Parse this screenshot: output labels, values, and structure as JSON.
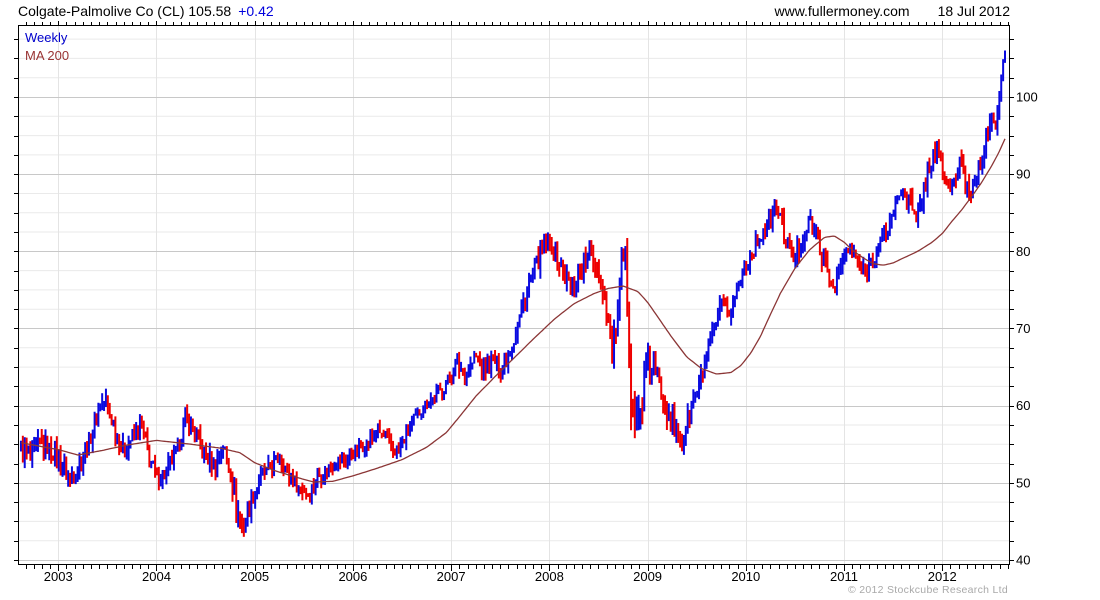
{
  "header": {
    "title": "Colgate-Palmolive Co (CL) 105.58",
    "change": "+0.42",
    "site": "www.fullermoney.com",
    "date": "18 Jul 2012"
  },
  "legend": {
    "weekly": "Weekly",
    "ma": "MA 200"
  },
  "footer": {
    "copyright": "© 2012 Stockcube Research Ltd"
  },
  "colors": {
    "up": "#0a0ae0",
    "down": "#ee0000",
    "ma_line": "#8b3636",
    "grid_major": "#c8c8c8",
    "grid_minor": "#eaeaea",
    "grid_year": "#e4e4e4",
    "axis": "#000000",
    "muted": "#a9a9a9",
    "change_text": "#0000dd"
  },
  "chart_data": {
    "type": "bar",
    "subtype": "weekly-price-range-bars",
    "title": "Colgate-Palmolive Co (CL)",
    "last_price": 105.58,
    "change": 0.42,
    "legend": [
      "Weekly",
      "MA 200"
    ],
    "grid": true,
    "y_axis_side": "right",
    "ylabel": "",
    "xlabel": "",
    "x_domain": [
      2002.59,
      2012.69
    ],
    "y_domain_price_at_bottom_top": [
      39.35,
      109.33
    ],
    "y_tick_labels": [
      40,
      50,
      60,
      70,
      80,
      90,
      100
    ],
    "y_minor_step": 2.5,
    "x_tick_years": [
      2003,
      2004,
      2005,
      2006,
      2007,
      2008,
      2009,
      2010,
      2011,
      2012
    ],
    "bars_per_year": 52,
    "t_start": 2002.62,
    "t_end": 2012.64,
    "price_anchors": [
      [
        2002.62,
        54.5,
        3.2
      ],
      [
        2002.72,
        52.8,
        3.4
      ],
      [
        2002.82,
        55.3,
        3.0
      ],
      [
        2002.92,
        54.3,
        2.8
      ],
      [
        2003.02,
        53.0,
        2.8
      ],
      [
        2003.12,
        50.6,
        3.0
      ],
      [
        2003.22,
        52.5,
        2.6
      ],
      [
        2003.32,
        55.5,
        2.6
      ],
      [
        2003.42,
        60.0,
        2.6
      ],
      [
        2003.48,
        60.8,
        2.4
      ],
      [
        2003.56,
        57.5,
        2.6
      ],
      [
        2003.66,
        54.2,
        2.6
      ],
      [
        2003.76,
        56.0,
        2.4
      ],
      [
        2003.84,
        57.8,
        2.4
      ],
      [
        2003.92,
        53.5,
        3.0
      ],
      [
        2004.0,
        50.5,
        2.8
      ],
      [
        2004.1,
        51.5,
        2.6
      ],
      [
        2004.2,
        53.8,
        2.4
      ],
      [
        2004.3,
        58.3,
        2.6
      ],
      [
        2004.4,
        56.5,
        2.6
      ],
      [
        2004.5,
        53.5,
        2.8
      ],
      [
        2004.6,
        52.3,
        2.6
      ],
      [
        2004.68,
        54.8,
        2.2
      ],
      [
        2004.76,
        51.0,
        3.0
      ],
      [
        2004.82,
        46.5,
        4.0
      ],
      [
        2004.88,
        44.0,
        3.0
      ],
      [
        2004.96,
        47.5,
        2.6
      ],
      [
        2005.05,
        50.5,
        2.4
      ],
      [
        2005.15,
        51.8,
        2.2
      ],
      [
        2005.25,
        53.3,
        2.2
      ],
      [
        2005.35,
        51.0,
        2.4
      ],
      [
        2005.45,
        49.3,
        2.2
      ],
      [
        2005.55,
        48.8,
        2.2
      ],
      [
        2005.65,
        50.8,
        2.2
      ],
      [
        2005.75,
        51.8,
        2.0
      ],
      [
        2005.85,
        52.8,
        2.0
      ],
      [
        2005.95,
        53.2,
        2.0
      ],
      [
        2006.05,
        54.2,
        2.0
      ],
      [
        2006.15,
        55.2,
        2.0
      ],
      [
        2006.25,
        56.8,
        2.0
      ],
      [
        2006.35,
        55.3,
        2.2
      ],
      [
        2006.45,
        53.9,
        2.2
      ],
      [
        2006.55,
        56.2,
        2.0
      ],
      [
        2006.65,
        58.8,
        2.0
      ],
      [
        2006.75,
        60.3,
        2.0
      ],
      [
        2006.85,
        61.4,
        2.0
      ],
      [
        2006.95,
        62.8,
        2.0
      ],
      [
        2007.05,
        65.3,
        2.4
      ],
      [
        2007.15,
        64.2,
        2.4
      ],
      [
        2007.25,
        66.3,
        2.4
      ],
      [
        2007.33,
        64.3,
        2.4
      ],
      [
        2007.42,
        66.0,
        2.4
      ],
      [
        2007.5,
        64.8,
        2.4
      ],
      [
        2007.58,
        66.5,
        2.4
      ],
      [
        2007.66,
        69.5,
        2.6
      ],
      [
        2007.76,
        74.5,
        2.8
      ],
      [
        2007.86,
        78.0,
        2.8
      ],
      [
        2007.94,
        80.3,
        2.8
      ],
      [
        2008.03,
        80.8,
        3.0
      ],
      [
        2008.12,
        77.8,
        3.0
      ],
      [
        2008.22,
        75.3,
        3.2
      ],
      [
        2008.32,
        77.8,
        2.8
      ],
      [
        2008.42,
        79.8,
        2.8
      ],
      [
        2008.5,
        77.5,
        3.0
      ],
      [
        2008.58,
        73.0,
        3.4
      ],
      [
        2008.64,
        67.0,
        3.6
      ],
      [
        2008.7,
        72.0,
        3.6
      ],
      [
        2008.74,
        79.5,
        3.8
      ],
      [
        2008.78,
        77.0,
        4.5
      ],
      [
        2008.83,
        64.0,
        9.0
      ],
      [
        2008.88,
        57.5,
        6.0
      ],
      [
        2008.93,
        59.5,
        5.0
      ],
      [
        2008.99,
        64.5,
        4.5
      ],
      [
        2009.06,
        65.3,
        4.0
      ],
      [
        2009.14,
        62.0,
        4.0
      ],
      [
        2009.22,
        59.0,
        4.0
      ],
      [
        2009.3,
        56.0,
        3.6
      ],
      [
        2009.36,
        55.2,
        3.2
      ],
      [
        2009.44,
        59.5,
        3.0
      ],
      [
        2009.52,
        62.5,
        2.8
      ],
      [
        2009.6,
        66.2,
        2.6
      ],
      [
        2009.68,
        69.8,
        2.5
      ],
      [
        2009.75,
        73.2,
        2.5
      ],
      [
        2009.82,
        71.8,
        2.6
      ],
      [
        2009.9,
        74.5,
        2.4
      ],
      [
        2009.97,
        77.0,
        2.4
      ],
      [
        2010.05,
        79.8,
        2.4
      ],
      [
        2010.14,
        81.8,
        2.5
      ],
      [
        2010.24,
        83.8,
        2.5
      ],
      [
        2010.32,
        85.8,
        2.4
      ],
      [
        2010.4,
        82.0,
        3.2
      ],
      [
        2010.48,
        78.8,
        2.8
      ],
      [
        2010.56,
        80.8,
        2.6
      ],
      [
        2010.64,
        84.2,
        2.4
      ],
      [
        2010.72,
        81.8,
        2.8
      ],
      [
        2010.8,
        78.5,
        2.8
      ],
      [
        2010.88,
        75.3,
        2.8
      ],
      [
        2010.96,
        77.8,
        2.6
      ],
      [
        2011.04,
        80.5,
        2.4
      ],
      [
        2011.12,
        79.0,
        2.4
      ],
      [
        2011.2,
        77.2,
        2.6
      ],
      [
        2011.28,
        78.8,
        2.4
      ],
      [
        2011.36,
        80.8,
        2.4
      ],
      [
        2011.44,
        82.8,
        2.4
      ],
      [
        2011.52,
        85.8,
        2.4
      ],
      [
        2011.6,
        88.3,
        2.6
      ],
      [
        2011.68,
        86.0,
        3.0
      ],
      [
        2011.74,
        83.5,
        4.5
      ],
      [
        2011.8,
        87.5,
        3.0
      ],
      [
        2011.87,
        91.0,
        3.0
      ],
      [
        2011.93,
        93.5,
        2.8
      ],
      [
        2012.0,
        91.0,
        3.0
      ],
      [
        2012.06,
        87.8,
        3.0
      ],
      [
        2012.12,
        89.0,
        2.8
      ],
      [
        2012.18,
        91.5,
        2.8
      ],
      [
        2012.24,
        88.5,
        2.8
      ],
      [
        2012.3,
        87.8,
        2.6
      ],
      [
        2012.36,
        90.5,
        2.6
      ],
      [
        2012.42,
        93.3,
        2.6
      ],
      [
        2012.48,
        95.8,
        2.6
      ],
      [
        2012.52,
        97.5,
        2.6
      ],
      [
        2012.55,
        96.5,
        2.6
      ],
      [
        2012.58,
        100.5,
        2.8
      ],
      [
        2012.61,
        103.0,
        2.6
      ],
      [
        2012.64,
        105.58,
        2.4
      ]
    ],
    "ma200_anchors": [
      [
        2002.62,
        55.2
      ],
      [
        2003.0,
        54.3
      ],
      [
        2003.2,
        53.6
      ],
      [
        2003.45,
        54.2
      ],
      [
        2003.7,
        54.9
      ],
      [
        2004.0,
        55.5
      ],
      [
        2004.35,
        55.0
      ],
      [
        2004.65,
        54.5
      ],
      [
        2004.85,
        53.9
      ],
      [
        2005.0,
        52.6
      ],
      [
        2005.2,
        51.6
      ],
      [
        2005.4,
        50.8
      ],
      [
        2005.6,
        50.1
      ],
      [
        2005.8,
        50.2
      ],
      [
        2006.0,
        50.9
      ],
      [
        2006.25,
        51.9
      ],
      [
        2006.5,
        53.0
      ],
      [
        2006.75,
        54.6
      ],
      [
        2006.95,
        56.5
      ],
      [
        2007.1,
        58.8
      ],
      [
        2007.25,
        61.2
      ],
      [
        2007.45,
        63.8
      ],
      [
        2007.65,
        66.3
      ],
      [
        2007.85,
        68.8
      ],
      [
        2008.05,
        71.2
      ],
      [
        2008.25,
        73.2
      ],
      [
        2008.45,
        74.5
      ],
      [
        2008.6,
        75.2
      ],
      [
        2008.75,
        75.5
      ],
      [
        2008.9,
        74.8
      ],
      [
        2009.0,
        73.4
      ],
      [
        2009.12,
        71.2
      ],
      [
        2009.25,
        68.8
      ],
      [
        2009.4,
        66.3
      ],
      [
        2009.55,
        64.8
      ],
      [
        2009.7,
        64.1
      ],
      [
        2009.85,
        64.3
      ],
      [
        2009.95,
        65.2
      ],
      [
        2010.05,
        66.8
      ],
      [
        2010.15,
        69.0
      ],
      [
        2010.25,
        71.8
      ],
      [
        2010.35,
        74.5
      ],
      [
        2010.5,
        77.8
      ],
      [
        2010.65,
        80.2
      ],
      [
        2010.8,
        81.8
      ],
      [
        2010.9,
        82.0
      ],
      [
        2011.0,
        81.2
      ],
      [
        2011.1,
        80.0
      ],
      [
        2011.2,
        79.1
      ],
      [
        2011.3,
        78.4
      ],
      [
        2011.4,
        78.2
      ],
      [
        2011.5,
        78.5
      ],
      [
        2011.6,
        79.1
      ],
      [
        2011.75,
        80.0
      ],
      [
        2011.9,
        81.2
      ],
      [
        2012.0,
        82.3
      ],
      [
        2012.1,
        83.9
      ],
      [
        2012.2,
        85.4
      ],
      [
        2012.3,
        87.1
      ],
      [
        2012.4,
        88.9
      ],
      [
        2012.5,
        91.0
      ],
      [
        2012.58,
        92.9
      ],
      [
        2012.64,
        94.6
      ]
    ]
  }
}
